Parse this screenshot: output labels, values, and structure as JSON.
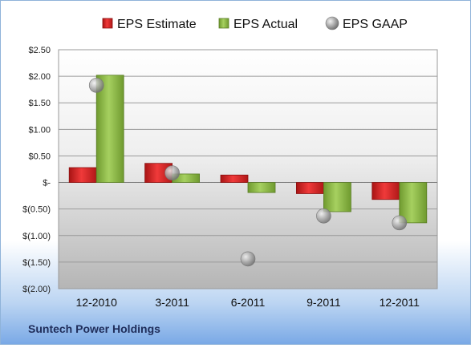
{
  "chart_data": {
    "type": "bar",
    "title": "",
    "xlabel": "",
    "ylabel": "",
    "categories": [
      "12-2010",
      "3-2011",
      "6-2011",
      "9-2011",
      "12-2011"
    ],
    "series": [
      {
        "name": "EPS Estimate",
        "kind": "bar",
        "color": "#d42a2a",
        "values": [
          0.28,
          0.36,
          0.14,
          -0.21,
          -0.32
        ]
      },
      {
        "name": "EPS Actual",
        "kind": "bar",
        "color": "#8db84a",
        "values": [
          2.02,
          0.16,
          -0.19,
          -0.55,
          -0.76
        ]
      },
      {
        "name": "EPS GAAP",
        "kind": "point",
        "color": "#a9a9a9",
        "values": [
          1.83,
          0.18,
          -1.44,
          -0.63,
          -0.76
        ]
      }
    ],
    "ylim": [
      -2.0,
      2.5
    ],
    "yticks": [
      {
        "value": 2.5,
        "label": "$2.50"
      },
      {
        "value": 2.0,
        "label": "$2.00"
      },
      {
        "value": 1.5,
        "label": "$1.50"
      },
      {
        "value": 1.0,
        "label": "$1.00"
      },
      {
        "value": 0.5,
        "label": "$0.50"
      },
      {
        "value": 0.0,
        "label": "$-"
      },
      {
        "value": -0.5,
        "label": "$(0.50)"
      },
      {
        "value": -1.0,
        "label": "$(1.00)"
      },
      {
        "value": -1.5,
        "label": "$(1.50)"
      },
      {
        "value": -2.0,
        "label": "$(2.00)"
      }
    ],
    "grid": true,
    "legend_position": "top"
  },
  "footer": {
    "company": "Suntech Power Holdings"
  }
}
